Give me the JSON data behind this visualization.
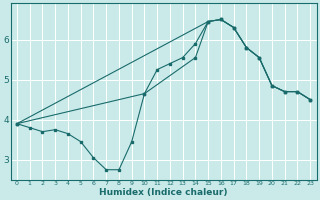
{
  "xlabel": "Humidex (Indice chaleur)",
  "bg_color": "#caeaea",
  "grid_color": "#ffffff",
  "line_color": "#1a6b6b",
  "xlim": [
    -0.5,
    23.5
  ],
  "ylim": [
    2.5,
    6.9
  ],
  "yticks": [
    3,
    4,
    5,
    6
  ],
  "xticks": [
    0,
    1,
    2,
    3,
    4,
    5,
    6,
    7,
    8,
    9,
    10,
    11,
    12,
    13,
    14,
    15,
    16,
    17,
    18,
    19,
    20,
    21,
    22,
    23
  ],
  "line1_x": [
    0,
    1,
    2,
    3,
    4,
    5,
    6,
    7,
    8,
    9,
    10,
    11,
    12,
    13,
    14,
    15,
    16,
    17,
    18,
    19,
    20,
    21,
    22,
    23
  ],
  "line1_y": [
    3.9,
    3.8,
    3.7,
    3.75,
    3.65,
    3.45,
    3.05,
    2.75,
    2.75,
    3.45,
    4.65,
    5.25,
    5.4,
    5.55,
    5.9,
    6.45,
    6.5,
    6.3,
    5.8,
    5.55,
    4.85,
    4.7,
    4.7,
    4.5
  ],
  "line2_x": [
    0,
    15,
    16,
    17,
    18,
    19,
    20,
    21,
    22,
    23
  ],
  "line2_y": [
    3.9,
    6.45,
    6.5,
    6.3,
    5.8,
    5.55,
    4.85,
    4.7,
    4.7,
    4.5
  ],
  "line3_x": [
    0,
    10,
    14,
    15,
    16,
    17,
    18,
    19,
    20,
    21,
    22,
    23
  ],
  "line3_y": [
    3.9,
    4.65,
    5.55,
    6.45,
    6.5,
    6.3,
    5.8,
    5.55,
    4.85,
    4.7,
    4.7,
    4.5
  ]
}
